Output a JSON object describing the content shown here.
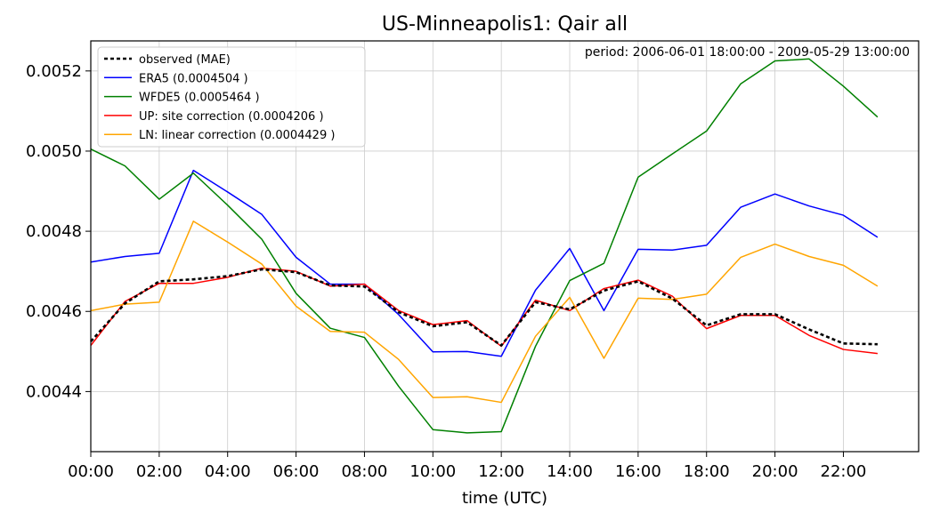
{
  "chart_data": {
    "type": "line",
    "title": "US-Minneapolis1: Qair all",
    "xlabel": "time (UTC)",
    "ylabel": "",
    "annotation": "period: 2006-06-01 18:00:00 - 2009-05-29 13:00:00",
    "x": [
      0,
      1,
      2,
      3,
      4,
      5,
      6,
      7,
      8,
      9,
      10,
      11,
      12,
      13,
      14,
      15,
      16,
      17,
      18,
      19,
      20,
      21,
      22,
      23
    ],
    "x_ticks": [
      0,
      2,
      4,
      6,
      8,
      10,
      12,
      14,
      16,
      18,
      20,
      22
    ],
    "x_tick_labels": [
      "00:00",
      "02:00",
      "04:00",
      "06:00",
      "08:00",
      "10:00",
      "12:00",
      "14:00",
      "16:00",
      "18:00",
      "20:00",
      "22:00"
    ],
    "xlim": [
      0,
      24.2
    ],
    "ylim": [
      0.00425,
      0.005275
    ],
    "y_ticks": [
      0.0044,
      0.0046,
      0.0048,
      0.005,
      0.0052
    ],
    "y_tick_labels": [
      "0.0044",
      "0.0046",
      "0.0048",
      "0.0050",
      "0.0052"
    ],
    "grid": true,
    "legend_position": "top-left",
    "series": [
      {
        "name": "observed (MAE)",
        "color": "#000000",
        "dashed": true,
        "values": [
          0.004525,
          0.00462,
          0.004675,
          0.00468,
          0.004688,
          0.004705,
          0.004698,
          0.004665,
          0.004662,
          0.004598,
          0.004563,
          0.004573,
          0.004515,
          0.004623,
          0.004605,
          0.004652,
          0.004675,
          0.004632,
          0.004565,
          0.004593,
          0.004593,
          0.004555,
          0.00452,
          0.004518
        ]
      },
      {
        "name": "ERA5 (0.0004504 )",
        "color": "#0000ff",
        "dashed": false,
        "values": [
          0.004723,
          0.004737,
          0.004745,
          0.004952,
          0.004898,
          0.004842,
          0.004735,
          0.004668,
          0.004668,
          0.004592,
          0.004499,
          0.0045,
          0.004488,
          0.004653,
          0.004757,
          0.004602,
          0.004755,
          0.004753,
          0.004765,
          0.00486,
          0.004893,
          0.004863,
          0.00484,
          0.004785
        ]
      },
      {
        "name": "WFDE5 (0.0005464 )",
        "color": "#008000",
        "dashed": false,
        "values": [
          0.005005,
          0.004963,
          0.00488,
          0.004945,
          0.004865,
          0.00478,
          0.004645,
          0.004558,
          0.004535,
          0.004413,
          0.004305,
          0.004297,
          0.0043,
          0.004513,
          0.004677,
          0.00472,
          0.004935,
          0.004993,
          0.00505,
          0.005168,
          0.005225,
          0.00523,
          0.005162,
          0.005085
        ]
      },
      {
        "name": "UP: site correction (0.0004206 )",
        "color": "#ff0000",
        "dashed": false,
        "values": [
          0.004515,
          0.004625,
          0.00467,
          0.00467,
          0.004685,
          0.004708,
          0.0047,
          0.004663,
          0.004668,
          0.004602,
          0.004567,
          0.004577,
          0.004513,
          0.004628,
          0.004602,
          0.004657,
          0.004678,
          0.004638,
          0.004557,
          0.00459,
          0.00459,
          0.00454,
          0.004505,
          0.004495
        ]
      },
      {
        "name": "LN: linear correction (0.0004429 )",
        "color": "#ffa500",
        "dashed": false,
        "values": [
          0.004602,
          0.004618,
          0.004623,
          0.004825,
          0.004773,
          0.004718,
          0.004613,
          0.00455,
          0.004548,
          0.00448,
          0.004385,
          0.004387,
          0.004373,
          0.004538,
          0.004635,
          0.004483,
          0.004633,
          0.00463,
          0.004643,
          0.004735,
          0.004768,
          0.004737,
          0.004715,
          0.004663
        ]
      }
    ]
  }
}
